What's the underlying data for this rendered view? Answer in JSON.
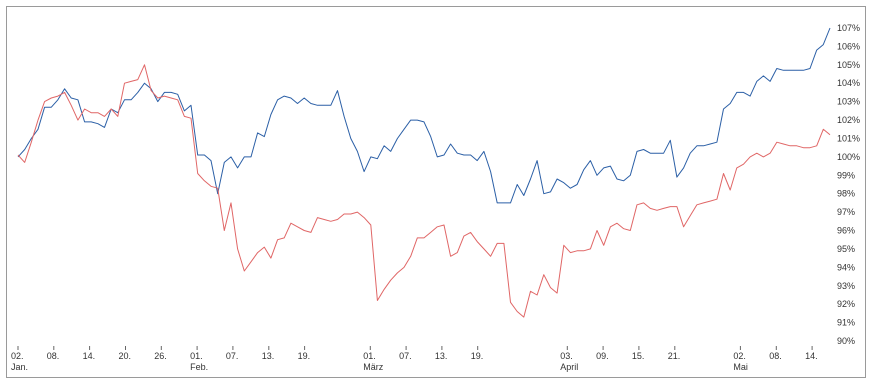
{
  "chart_data": {
    "type": "line",
    "title": "",
    "xlabel": "",
    "ylabel": "",
    "ylim": [
      90,
      107
    ],
    "y_unit": "%",
    "y_ticks": [
      90,
      91,
      92,
      93,
      94,
      95,
      96,
      97,
      98,
      99,
      100,
      101,
      102,
      103,
      104,
      105,
      106,
      107
    ],
    "y_tick_labels": [
      "90%",
      "91%",
      "92%",
      "93%",
      "94%",
      "95%",
      "96%",
      "97%",
      "98%",
      "99%",
      "100%",
      "101%",
      "102%",
      "103%",
      "104%",
      "105%",
      "106%",
      "107%"
    ],
    "x_range": [
      "2024-01-02",
      "2024-05-17"
    ],
    "x_ticks": [
      {
        "date": "2024-01-02",
        "label": "02.",
        "sub": "Jan."
      },
      {
        "date": "2024-01-08",
        "label": "08.",
        "sub": ""
      },
      {
        "date": "2024-01-14",
        "label": "14.",
        "sub": ""
      },
      {
        "date": "2024-01-20",
        "label": "20.",
        "sub": ""
      },
      {
        "date": "2024-01-26",
        "label": "26.",
        "sub": ""
      },
      {
        "date": "2024-02-01",
        "label": "01.",
        "sub": "Feb."
      },
      {
        "date": "2024-02-07",
        "label": "07.",
        "sub": ""
      },
      {
        "date": "2024-02-13",
        "label": "13.",
        "sub": ""
      },
      {
        "date": "2024-02-19",
        "label": "19.",
        "sub": ""
      },
      {
        "date": "2024-03-01",
        "label": "01.",
        "sub": "März"
      },
      {
        "date": "2024-03-07",
        "label": "07.",
        "sub": ""
      },
      {
        "date": "2024-03-13",
        "label": "13.",
        "sub": ""
      },
      {
        "date": "2024-03-19",
        "label": "19.",
        "sub": ""
      },
      {
        "date": "2024-04-03",
        "label": "03.",
        "sub": "April"
      },
      {
        "date": "2024-04-09",
        "label": "09.",
        "sub": ""
      },
      {
        "date": "2024-04-15",
        "label": "15.",
        "sub": ""
      },
      {
        "date": "2024-04-21",
        "label": "21.",
        "sub": ""
      },
      {
        "date": "2024-05-02",
        "label": "02.",
        "sub": "Mai"
      },
      {
        "date": "2024-05-08",
        "label": "08.",
        "sub": ""
      },
      {
        "date": "2024-05-14",
        "label": "14.",
        "sub": ""
      }
    ],
    "series": [
      {
        "color": "#2b5fa6",
        "points": [
          [
            "2024-01-02",
            100.0
          ],
          [
            "2024-01-03",
            100.4
          ],
          [
            "2024-01-04",
            101.0
          ],
          [
            "2024-01-05",
            101.5
          ],
          [
            "2024-01-06",
            102.7
          ],
          [
            "2024-01-07",
            102.7
          ],
          [
            "2024-01-08",
            103.1
          ],
          [
            "2024-01-09",
            103.7
          ],
          [
            "2024-01-10",
            103.2
          ],
          [
            "2024-01-11",
            103.1
          ],
          [
            "2024-01-12",
            101.9
          ],
          [
            "2024-01-13",
            101.9
          ],
          [
            "2024-01-14",
            101.8
          ],
          [
            "2024-01-15",
            101.6
          ],
          [
            "2024-01-16",
            102.6
          ],
          [
            "2024-01-17",
            102.4
          ],
          [
            "2024-01-18",
            103.1
          ],
          [
            "2024-01-19",
            103.1
          ],
          [
            "2024-01-20",
            103.5
          ],
          [
            "2024-01-21",
            104.0
          ],
          [
            "2024-01-22",
            103.7
          ],
          [
            "2024-01-23",
            103.0
          ],
          [
            "2024-01-24",
            103.5
          ],
          [
            "2024-01-25",
            103.5
          ],
          [
            "2024-01-26",
            103.4
          ],
          [
            "2024-01-27",
            102.5
          ],
          [
            "2024-01-28",
            102.8
          ],
          [
            "2024-01-29",
            100.1
          ],
          [
            "2024-01-30",
            100.1
          ],
          [
            "2024-01-31",
            99.8
          ],
          [
            "2024-02-01",
            98.0
          ],
          [
            "2024-02-02",
            99.7
          ],
          [
            "2024-02-03",
            100.0
          ],
          [
            "2024-02-04",
            99.4
          ],
          [
            "2024-02-05",
            100.0
          ],
          [
            "2024-02-06",
            100.0
          ],
          [
            "2024-02-07",
            101.3
          ],
          [
            "2024-02-08",
            101.1
          ],
          [
            "2024-02-09",
            102.3
          ],
          [
            "2024-02-10",
            103.1
          ],
          [
            "2024-02-11",
            103.3
          ],
          [
            "2024-02-12",
            103.2
          ],
          [
            "2024-02-13",
            102.9
          ],
          [
            "2024-02-14",
            103.2
          ],
          [
            "2024-02-15",
            102.9
          ],
          [
            "2024-02-16",
            102.8
          ],
          [
            "2024-02-17",
            102.8
          ],
          [
            "2024-02-18",
            102.8
          ],
          [
            "2024-02-19",
            103.6
          ],
          [
            "2024-02-20",
            102.2
          ],
          [
            "2024-02-21",
            101.0
          ],
          [
            "2024-02-22",
            100.3
          ],
          [
            "2024-02-23",
            99.2
          ],
          [
            "2024-02-24",
            100.0
          ],
          [
            "2024-02-25",
            99.9
          ],
          [
            "2024-02-26",
            100.6
          ],
          [
            "2024-02-27",
            100.3
          ],
          [
            "2024-02-28",
            101.0
          ],
          [
            "2024-02-29",
            101.5
          ],
          [
            "2024-03-01",
            102.0
          ],
          [
            "2024-03-02",
            102.0
          ],
          [
            "2024-03-03",
            101.9
          ],
          [
            "2024-03-04",
            101.1
          ],
          [
            "2024-03-05",
            100.0
          ],
          [
            "2024-03-06",
            100.1
          ],
          [
            "2024-03-07",
            100.7
          ],
          [
            "2024-03-08",
            100.2
          ],
          [
            "2024-03-09",
            100.1
          ],
          [
            "2024-03-10",
            100.1
          ],
          [
            "2024-03-11",
            99.8
          ],
          [
            "2024-03-12",
            100.3
          ],
          [
            "2024-03-13",
            99.2
          ],
          [
            "2024-03-14",
            97.5
          ],
          [
            "2024-03-15",
            97.5
          ],
          [
            "2024-03-16",
            97.5
          ],
          [
            "2024-03-17",
            98.5
          ],
          [
            "2024-03-18",
            97.9
          ],
          [
            "2024-03-19",
            98.8
          ],
          [
            "2024-03-20",
            99.8
          ],
          [
            "2024-03-21",
            98.0
          ],
          [
            "2024-03-22",
            98.1
          ],
          [
            "2024-03-23",
            98.8
          ],
          [
            "2024-03-24",
            98.6
          ],
          [
            "2024-03-25",
            98.3
          ],
          [
            "2024-03-26",
            98.5
          ],
          [
            "2024-03-27",
            99.3
          ],
          [
            "2024-03-28",
            99.8
          ],
          [
            "2024-03-29",
            99.0
          ],
          [
            "2024-03-30",
            99.4
          ],
          [
            "2024-03-31",
            99.5
          ],
          [
            "2024-04-01",
            98.8
          ],
          [
            "2024-04-02",
            98.7
          ],
          [
            "2024-04-03",
            99.0
          ],
          [
            "2024-04-04",
            100.3
          ],
          [
            "2024-04-05",
            100.4
          ],
          [
            "2024-04-06",
            100.2
          ],
          [
            "2024-04-07",
            100.2
          ],
          [
            "2024-04-08",
            100.2
          ],
          [
            "2024-04-09",
            100.9
          ],
          [
            "2024-04-10",
            98.9
          ],
          [
            "2024-04-11",
            99.4
          ],
          [
            "2024-04-12",
            100.2
          ],
          [
            "2024-04-13",
            100.6
          ],
          [
            "2024-04-14",
            100.6
          ],
          [
            "2024-04-15",
            100.7
          ],
          [
            "2024-04-16",
            100.8
          ],
          [
            "2024-04-17",
            102.6
          ],
          [
            "2024-04-18",
            102.9
          ],
          [
            "2024-04-19",
            103.5
          ],
          [
            "2024-04-20",
            103.5
          ],
          [
            "2024-04-21",
            103.3
          ],
          [
            "2024-04-22",
            104.1
          ],
          [
            "2024-04-23",
            104.4
          ],
          [
            "2024-04-24",
            104.1
          ],
          [
            "2024-04-25",
            104.8
          ],
          [
            "2024-04-26",
            104.7
          ],
          [
            "2024-04-27",
            104.7
          ],
          [
            "2024-04-28",
            104.7
          ],
          [
            "2024-04-29",
            104.7
          ],
          [
            "2024-04-30",
            104.8
          ],
          [
            "2024-05-01",
            105.8
          ],
          [
            "2024-05-02",
            106.1
          ],
          [
            "2024-05-03",
            107.0
          ]
        ]
      },
      {
        "color": "#e06666",
        "points": [
          [
            "2024-01-02",
            100.1
          ],
          [
            "2024-01-03",
            99.7
          ],
          [
            "2024-01-04",
            100.8
          ],
          [
            "2024-01-05",
            102.0
          ],
          [
            "2024-01-06",
            103.0
          ],
          [
            "2024-01-07",
            103.2
          ],
          [
            "2024-01-08",
            103.3
          ],
          [
            "2024-01-09",
            103.5
          ],
          [
            "2024-01-10",
            102.8
          ],
          [
            "2024-01-11",
            102.0
          ],
          [
            "2024-01-12",
            102.6
          ],
          [
            "2024-01-13",
            102.4
          ],
          [
            "2024-01-14",
            102.4
          ],
          [
            "2024-01-15",
            102.2
          ],
          [
            "2024-01-16",
            102.6
          ],
          [
            "2024-01-17",
            102.2
          ],
          [
            "2024-01-18",
            104.0
          ],
          [
            "2024-01-19",
            104.1
          ],
          [
            "2024-01-20",
            104.2
          ],
          [
            "2024-01-21",
            105.0
          ],
          [
            "2024-01-22",
            103.6
          ],
          [
            "2024-01-23",
            103.2
          ],
          [
            "2024-01-24",
            103.3
          ],
          [
            "2024-01-25",
            103.2
          ],
          [
            "2024-01-26",
            103.1
          ],
          [
            "2024-01-27",
            102.2
          ],
          [
            "2024-01-28",
            102.1
          ],
          [
            "2024-01-29",
            99.1
          ],
          [
            "2024-01-30",
            98.7
          ],
          [
            "2024-01-31",
            98.4
          ],
          [
            "2024-02-01",
            98.3
          ],
          [
            "2024-02-02",
            96.0
          ],
          [
            "2024-02-03",
            97.5
          ],
          [
            "2024-02-04",
            95.0
          ],
          [
            "2024-02-05",
            93.8
          ],
          [
            "2024-02-06",
            94.3
          ],
          [
            "2024-02-07",
            94.8
          ],
          [
            "2024-02-08",
            95.1
          ],
          [
            "2024-02-09",
            94.5
          ],
          [
            "2024-02-10",
            95.5
          ],
          [
            "2024-02-11",
            95.6
          ],
          [
            "2024-02-12",
            96.4
          ],
          [
            "2024-02-13",
            96.2
          ],
          [
            "2024-02-14",
            96.0
          ],
          [
            "2024-02-15",
            95.9
          ],
          [
            "2024-02-16",
            96.7
          ],
          [
            "2024-02-17",
            96.6
          ],
          [
            "2024-02-18",
            96.5
          ],
          [
            "2024-02-19",
            96.6
          ],
          [
            "2024-02-20",
            96.9
          ],
          [
            "2024-02-21",
            96.9
          ],
          [
            "2024-02-22",
            97.0
          ],
          [
            "2024-02-23",
            96.7
          ],
          [
            "2024-02-24",
            96.3
          ],
          [
            "2024-02-25",
            92.2
          ],
          [
            "2024-02-26",
            92.8
          ],
          [
            "2024-02-27",
            93.3
          ],
          [
            "2024-02-28",
            93.7
          ],
          [
            "2024-02-29",
            94.0
          ],
          [
            "2024-03-01",
            94.6
          ],
          [
            "2024-03-02",
            95.6
          ],
          [
            "2024-03-03",
            95.6
          ],
          [
            "2024-03-04",
            95.9
          ],
          [
            "2024-03-05",
            96.2
          ],
          [
            "2024-03-06",
            96.3
          ],
          [
            "2024-03-07",
            94.6
          ],
          [
            "2024-03-08",
            94.8
          ],
          [
            "2024-03-09",
            95.7
          ],
          [
            "2024-03-10",
            95.9
          ],
          [
            "2024-03-11",
            95.4
          ],
          [
            "2024-03-12",
            95.0
          ],
          [
            "2024-03-13",
            94.6
          ],
          [
            "2024-03-14",
            95.3
          ],
          [
            "2024-03-15",
            95.3
          ],
          [
            "2024-03-16",
            92.1
          ],
          [
            "2024-03-17",
            91.6
          ],
          [
            "2024-03-18",
            91.3
          ],
          [
            "2024-03-19",
            92.7
          ],
          [
            "2024-03-20",
            92.5
          ],
          [
            "2024-03-21",
            93.6
          ],
          [
            "2024-03-22",
            92.9
          ],
          [
            "2024-03-23",
            92.6
          ],
          [
            "2024-03-24",
            95.2
          ],
          [
            "2024-03-25",
            94.8
          ],
          [
            "2024-03-26",
            94.9
          ],
          [
            "2024-03-27",
            94.9
          ],
          [
            "2024-03-28",
            95.0
          ],
          [
            "2024-03-29",
            96.0
          ],
          [
            "2024-03-30",
            95.2
          ],
          [
            "2024-03-31",
            96.2
          ],
          [
            "2024-04-01",
            96.4
          ],
          [
            "2024-04-02",
            96.1
          ],
          [
            "2024-04-03",
            96.0
          ],
          [
            "2024-04-04",
            97.4
          ],
          [
            "2024-04-05",
            97.5
          ],
          [
            "2024-04-06",
            97.2
          ],
          [
            "2024-04-07",
            97.1
          ],
          [
            "2024-04-08",
            97.2
          ],
          [
            "2024-04-09",
            97.3
          ],
          [
            "2024-04-10",
            97.3
          ],
          [
            "2024-04-11",
            96.2
          ],
          [
            "2024-04-12",
            96.8
          ],
          [
            "2024-04-13",
            97.4
          ],
          [
            "2024-04-14",
            97.5
          ],
          [
            "2024-04-15",
            97.6
          ],
          [
            "2024-04-16",
            97.7
          ],
          [
            "2024-04-17",
            99.1
          ],
          [
            "2024-04-18",
            98.2
          ],
          [
            "2024-04-19",
            99.4
          ],
          [
            "2024-04-20",
            99.6
          ],
          [
            "2024-04-21",
            100.0
          ],
          [
            "2024-04-22",
            100.2
          ],
          [
            "2024-04-23",
            100.0
          ],
          [
            "2024-04-24",
            100.2
          ],
          [
            "2024-04-25",
            100.8
          ],
          [
            "2024-04-26",
            100.7
          ],
          [
            "2024-04-27",
            100.6
          ],
          [
            "2024-04-28",
            100.6
          ],
          [
            "2024-04-29",
            100.5
          ],
          [
            "2024-04-30",
            100.5
          ],
          [
            "2024-05-01",
            100.6
          ],
          [
            "2024-05-02",
            101.5
          ],
          [
            "2024-05-03",
            101.2
          ]
        ]
      }
    ],
    "grid": false,
    "legend": "none"
  }
}
